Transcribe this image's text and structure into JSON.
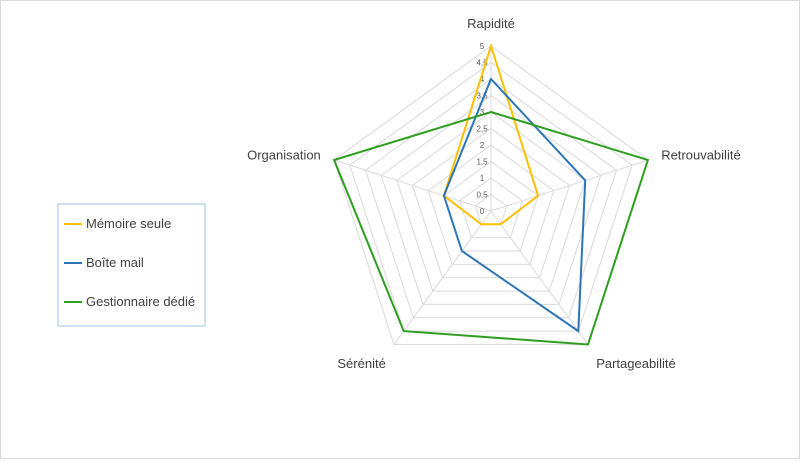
{
  "chart_data": {
    "type": "radar",
    "axes": [
      "Rapidité",
      "Retrouvabilité",
      "Partageabilité",
      "Sérénité",
      "Organisation"
    ],
    "ticks": [
      "0",
      "0,5",
      "1",
      "1,5",
      "2",
      "2,5",
      "3",
      "3,5",
      "4",
      "4,5",
      "5"
    ],
    "rmin": 0,
    "rmax": 5,
    "grid": true,
    "legend_position": "left",
    "series": [
      {
        "name": "Mémoire seule",
        "color": "#ffc000",
        "values": [
          5,
          1.5,
          0.5,
          0.5,
          1.5
        ]
      },
      {
        "name": "Boîte mail",
        "color": "#2e75b6",
        "values": [
          4,
          3,
          4.5,
          1.5,
          1.5
        ]
      },
      {
        "name": "Gestionnaire dédié",
        "color": "#2e9e1f",
        "values": [
          3,
          5,
          5,
          4.5,
          5
        ]
      }
    ]
  }
}
